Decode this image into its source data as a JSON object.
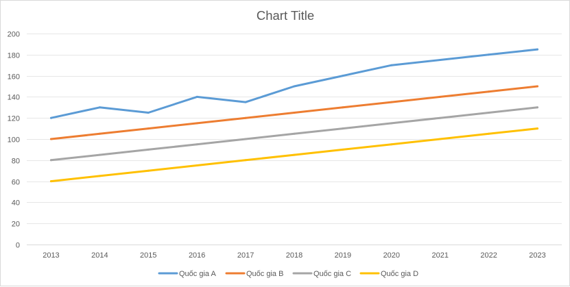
{
  "chart_data": {
    "type": "line",
    "title": "Chart Title",
    "xlabel": "",
    "ylabel": "",
    "categories": [
      "2013",
      "2014",
      "2015",
      "2016",
      "2017",
      "2018",
      "2019",
      "2020",
      "2021",
      "2022",
      "2023"
    ],
    "ylim": [
      0,
      200
    ],
    "yticks": [
      0,
      20,
      40,
      60,
      80,
      100,
      120,
      140,
      160,
      180,
      200
    ],
    "grid": true,
    "legend_position": "bottom",
    "series": [
      {
        "name": "Quốc gia A",
        "color": "#5b9bd5",
        "values": [
          120,
          130,
          125,
          140,
          135,
          150,
          160,
          170,
          175,
          180,
          185
        ]
      },
      {
        "name": "Quốc gia B",
        "color": "#ed7d31",
        "values": [
          100,
          105,
          110,
          115,
          120,
          125,
          130,
          135,
          140,
          145,
          150
        ]
      },
      {
        "name": "Quốc gia C",
        "color": "#a5a5a5",
        "values": [
          80,
          85,
          90,
          95,
          100,
          105,
          110,
          115,
          120,
          125,
          130
        ]
      },
      {
        "name": "Quốc gia D",
        "color": "#ffc000",
        "values": [
          60,
          65,
          70,
          75,
          80,
          85,
          90,
          95,
          100,
          105,
          110
        ]
      }
    ]
  }
}
